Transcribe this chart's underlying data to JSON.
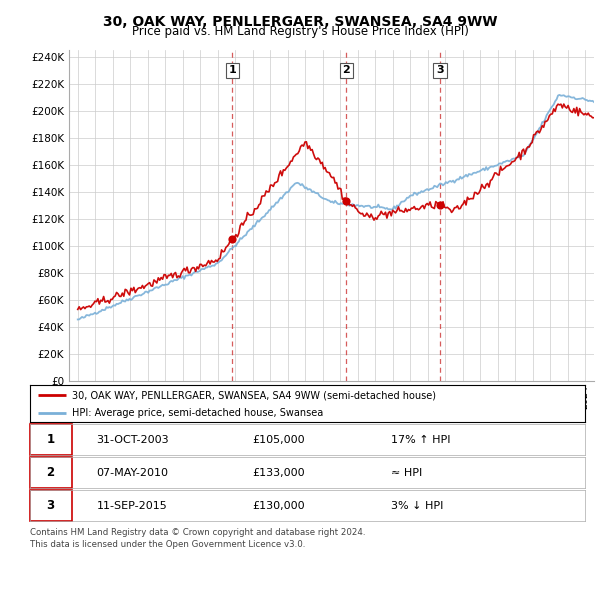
{
  "title": "30, OAK WAY, PENLLERGAER, SWANSEA, SA4 9WW",
  "subtitle": "Price paid vs. HM Land Registry's House Price Index (HPI)",
  "ylim": [
    0,
    245000
  ],
  "yticks": [
    0,
    20000,
    40000,
    60000,
    80000,
    100000,
    120000,
    140000,
    160000,
    180000,
    200000,
    220000,
    240000
  ],
  "ytick_labels": [
    "£0",
    "£20K",
    "£40K",
    "£60K",
    "£80K",
    "£100K",
    "£120K",
    "£140K",
    "£160K",
    "£180K",
    "£200K",
    "£220K",
    "£240K"
  ],
  "hpi_color": "#7ab0d8",
  "price_color": "#cc0000",
  "dashed_line_color": "#cc3333",
  "sales": [
    {
      "date": 2003.83,
      "price": 105000,
      "label": "1"
    },
    {
      "date": 2010.35,
      "price": 133000,
      "label": "2"
    },
    {
      "date": 2015.7,
      "price": 130000,
      "label": "3"
    }
  ],
  "legend_label_red": "30, OAK WAY, PENLLERGAER, SWANSEA, SA4 9WW (semi-detached house)",
  "legend_label_blue": "HPI: Average price, semi-detached house, Swansea",
  "table_rows": [
    {
      "num": "1",
      "date": "31-OCT-2003",
      "price": "£105,000",
      "rel": "17% ↑ HPI"
    },
    {
      "num": "2",
      "date": "07-MAY-2010",
      "price": "£133,000",
      "rel": "≈ HPI"
    },
    {
      "num": "3",
      "date": "11-SEP-2015",
      "price": "£130,000",
      "rel": "3% ↓ HPI"
    }
  ],
  "footer": "Contains HM Land Registry data © Crown copyright and database right 2024.\nThis data is licensed under the Open Government Licence v3.0.",
  "xmin": 1994.5,
  "xmax": 2024.5
}
